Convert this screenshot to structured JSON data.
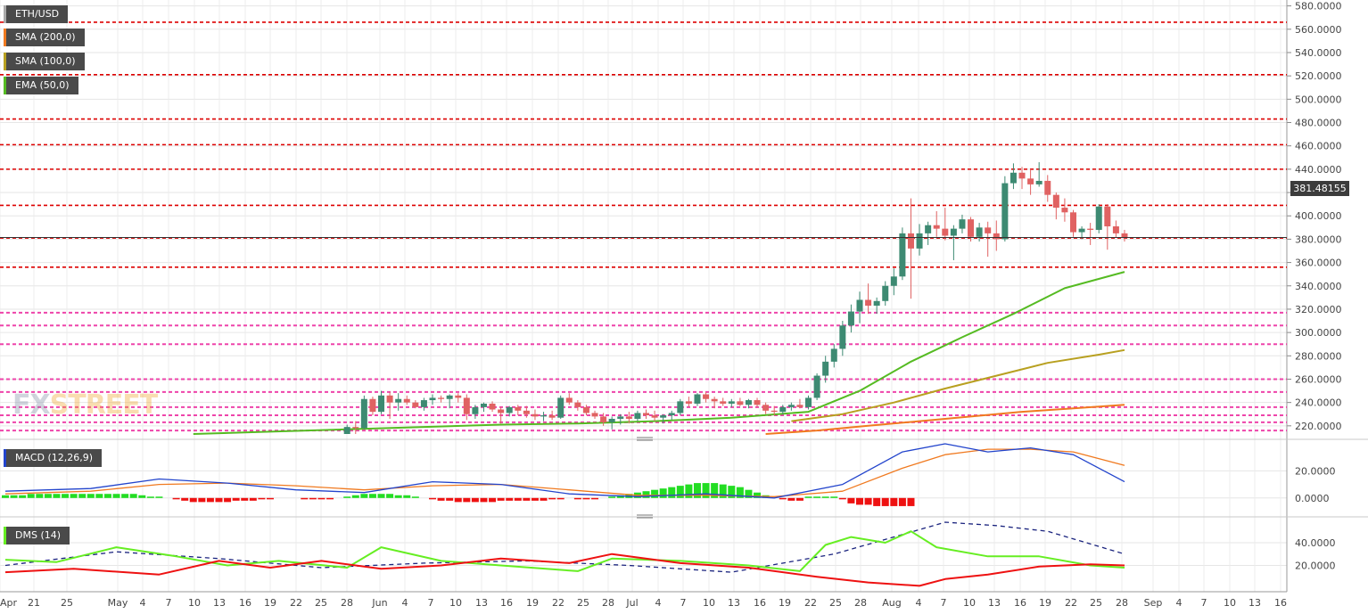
{
  "legend": {
    "symbol": "ETH/USD",
    "sma200": "SMA (200,0)",
    "sma100": "SMA (100,0)",
    "ema50": "EMA (50,0)",
    "macd": "MACD (12,26,9)",
    "dms": "DMS (14)"
  },
  "colors": {
    "up": "#3d8a72",
    "down": "#e06262",
    "sma200": "#f07a20",
    "sma100": "#b8a020",
    "ema50": "#55bb22",
    "macd_line": "#2244cc",
    "signal_line": "#f07a20",
    "hist_pos": "#22dd22",
    "hist_neg": "#ee1111",
    "dmi_plus": "#66ee22",
    "dmi_minus": "#ee1111",
    "adx": "#1a237e",
    "support_red": "#dd0000",
    "support_pink": "#ee44aa",
    "watermark_fx": "#7a8aa0",
    "watermark_street": "#f0a020"
  },
  "watermark": {
    "fx": "FX",
    "street": "STREET"
  },
  "last_price": "381.48155",
  "chart_data": [
    {
      "type": "candlestick",
      "ylim": [
        213,
        582
      ],
      "y_ticks": [
        "220.0000",
        "240.0000",
        "260.0000",
        "280.0000",
        "300.0000",
        "320.0000",
        "340.0000",
        "360.0000",
        "380.0000",
        "400.0000",
        "420.0000",
        "440.0000",
        "460.0000",
        "480.0000",
        "500.0000",
        "520.0000",
        "540.0000",
        "560.0000",
        "580.0000"
      ],
      "x_ticks": [
        "Apr",
        "21",
        "25",
        "May",
        "4",
        "7",
        "10",
        "13",
        "16",
        "19",
        "22",
        "25",
        "28",
        "Jun",
        "4",
        "7",
        "10",
        "13",
        "16",
        "19",
        "22",
        "25",
        "28",
        "Jul",
        "4",
        "7",
        "10",
        "13",
        "16",
        "19",
        "22",
        "25",
        "28",
        "Aug",
        "4",
        "7",
        "10",
        "13",
        "16",
        "19",
        "22",
        "25",
        "28",
        "Sep",
        "4",
        "7",
        "10",
        "13",
        "16"
      ],
      "start_date": "2020-04-18",
      "dates": [
        "2020-05-27",
        "2020-05-28",
        "2020-05-29",
        "2020-05-30",
        "2020-05-31",
        "2020-06-01",
        "2020-06-02",
        "2020-06-03",
        "2020-06-04",
        "2020-06-05",
        "2020-06-06",
        "2020-06-07",
        "2020-06-08",
        "2020-06-09",
        "2020-06-10",
        "2020-06-11",
        "2020-06-12",
        "2020-06-13",
        "2020-06-14",
        "2020-06-15",
        "2020-06-16",
        "2020-06-17",
        "2020-06-18",
        "2020-06-19",
        "2020-06-20",
        "2020-06-21",
        "2020-06-22",
        "2020-06-23",
        "2020-06-24",
        "2020-06-25",
        "2020-06-26",
        "2020-06-27",
        "2020-06-28",
        "2020-06-29",
        "2020-06-30",
        "2020-07-01",
        "2020-07-02",
        "2020-07-03",
        "2020-07-04",
        "2020-07-05",
        "2020-07-06",
        "2020-07-07",
        "2020-07-08",
        "2020-07-09",
        "2020-07-10",
        "2020-07-11",
        "2020-07-12",
        "2020-07-13",
        "2020-07-14",
        "2020-07-15",
        "2020-07-16",
        "2020-07-17",
        "2020-07-18",
        "2020-07-19",
        "2020-07-20",
        "2020-07-21",
        "2020-07-22",
        "2020-07-23",
        "2020-07-24",
        "2020-07-25",
        "2020-07-26",
        "2020-07-27",
        "2020-07-28",
        "2020-07-29",
        "2020-07-30",
        "2020-07-31",
        "2020-08-01",
        "2020-08-02",
        "2020-08-03",
        "2020-08-04",
        "2020-08-05",
        "2020-08-06",
        "2020-08-07",
        "2020-08-08",
        "2020-08-09",
        "2020-08-10",
        "2020-08-11",
        "2020-08-12",
        "2020-08-13",
        "2020-08-14",
        "2020-08-15",
        "2020-08-16",
        "2020-08-17",
        "2020-08-18",
        "2020-08-19",
        "2020-08-20",
        "2020-08-21",
        "2020-08-22",
        "2020-08-23",
        "2020-08-24",
        "2020-08-25",
        "2020-08-26",
        "2020-08-27"
      ],
      "ohlc": [
        [
          205,
          211,
          203,
          208
        ],
        [
          208,
          221,
          206,
          219
        ],
        [
          219,
          224,
          213,
          218
        ],
        [
          218,
          246,
          217,
          243
        ],
        [
          243,
          245,
          229,
          232
        ],
        [
          232,
          250,
          230,
          246
        ],
        [
          246,
          249,
          226,
          240
        ],
        [
          240,
          248,
          233,
          243
        ],
        [
          243,
          246,
          238,
          240
        ],
        [
          240,
          242,
          235,
          236
        ],
        [
          236,
          244,
          233,
          242
        ],
        [
          242,
          247,
          238,
          244
        ],
        [
          244,
          246,
          240,
          243
        ],
        [
          243,
          247,
          235,
          246
        ],
        [
          246,
          248,
          240,
          244
        ],
        [
          244,
          247,
          225,
          230
        ],
        [
          230,
          238,
          226,
          236
        ],
        [
          236,
          240,
          232,
          239
        ],
        [
          239,
          241,
          232,
          234
        ],
        [
          234,
          236,
          222,
          231
        ],
        [
          231,
          237,
          228,
          236
        ],
        [
          236,
          238,
          229,
          233
        ],
        [
          233,
          237,
          227,
          230
        ],
        [
          230,
          234,
          225,
          228
        ],
        [
          228,
          232,
          224,
          229
        ],
        [
          229,
          233,
          225,
          227
        ],
        [
          227,
          246,
          226,
          244
        ],
        [
          244,
          248,
          238,
          240
        ],
        [
          240,
          242,
          233,
          236
        ],
        [
          236,
          238,
          229,
          231
        ],
        [
          231,
          233,
          226,
          228
        ],
        [
          228,
          231,
          220,
          223
        ],
        [
          223,
          228,
          217,
          226
        ],
        [
          226,
          230,
          221,
          228
        ],
        [
          228,
          232,
          222,
          226
        ],
        [
          226,
          233,
          224,
          231
        ],
        [
          231,
          234,
          226,
          229
        ],
        [
          229,
          233,
          224,
          227
        ],
        [
          227,
          230,
          222,
          229
        ],
        [
          229,
          233,
          225,
          231
        ],
        [
          231,
          243,
          229,
          241
        ],
        [
          241,
          245,
          236,
          239
        ],
        [
          239,
          248,
          237,
          247
        ],
        [
          247,
          249,
          240,
          243
        ],
        [
          243,
          245,
          235,
          241
        ],
        [
          241,
          244,
          237,
          239
        ],
        [
          239,
          243,
          236,
          241
        ],
        [
          241,
          244,
          237,
          238
        ],
        [
          238,
          243,
          235,
          242
        ],
        [
          242,
          244,
          236,
          238
        ],
        [
          238,
          240,
          230,
          233
        ],
        [
          233,
          237,
          229,
          232
        ],
        [
          232,
          238,
          230,
          236
        ],
        [
          236,
          240,
          233,
          238
        ],
        [
          238,
          243,
          235,
          236
        ],
        [
          236,
          246,
          234,
          244
        ],
        [
          244,
          265,
          242,
          263
        ],
        [
          263,
          280,
          257,
          275
        ],
        [
          275,
          290,
          270,
          286
        ],
        [
          286,
          310,
          280,
          306
        ],
        [
          306,
          324,
          300,
          318
        ],
        [
          318,
          335,
          308,
          328
        ],
        [
          328,
          342,
          316,
          323
        ],
        [
          323,
          330,
          316,
          327
        ],
        [
          327,
          344,
          323,
          340
        ],
        [
          340,
          355,
          332,
          348
        ],
        [
          348,
          390,
          345,
          385
        ],
        [
          385,
          415,
          329,
          372
        ],
        [
          372,
          393,
          366,
          385
        ],
        [
          385,
          395,
          375,
          392
        ],
        [
          392,
          404,
          382,
          389
        ],
        [
          389,
          407,
          379,
          383
        ],
        [
          383,
          392,
          362,
          389
        ],
        [
          389,
          401,
          385,
          397
        ],
        [
          397,
          399,
          378,
          382
        ],
        [
          382,
          394,
          378,
          390
        ],
        [
          390,
          395,
          365,
          385
        ],
        [
          385,
          396,
          370,
          380
        ],
        [
          380,
          434,
          378,
          428
        ],
        [
          428,
          445,
          423,
          437
        ],
        [
          437,
          442,
          423,
          432
        ],
        [
          432,
          440,
          418,
          427
        ],
        [
          427,
          446,
          425,
          430
        ],
        [
          430,
          435,
          412,
          418
        ],
        [
          418,
          420,
          397,
          407
        ],
        [
          407,
          415,
          395,
          403
        ],
        [
          403,
          405,
          382,
          386
        ],
        [
          386,
          391,
          380,
          389
        ],
        [
          389,
          394,
          375,
          388
        ],
        [
          388,
          410,
          385,
          408
        ],
        [
          408,
          410,
          371,
          391
        ],
        [
          391,
          396,
          381,
          385
        ],
        [
          385,
          388,
          378,
          381
        ]
      ],
      "sma200": {
        "dates": [
          "2020-07-16",
          "2020-07-22",
          "2020-07-28",
          "2020-08-03",
          "2020-08-09",
          "2020-08-15",
          "2020-08-21",
          "2020-08-27"
        ],
        "values": [
          213,
          216,
          220,
          224,
          228,
          232,
          235,
          238
        ]
      },
      "sma100": {
        "dates": [
          "2020-07-19",
          "2020-07-25",
          "2020-07-31",
          "2020-08-06",
          "2020-08-12",
          "2020-08-18",
          "2020-08-24",
          "2020-08-27"
        ],
        "values": [
          224,
          230,
          240,
          252,
          263,
          274,
          281,
          285
        ]
      },
      "ema50": {
        "dates": [
          "2020-05-10",
          "2020-05-19",
          "2020-05-28",
          "2020-06-06",
          "2020-06-15",
          "2020-06-24",
          "2020-07-03",
          "2020-07-12",
          "2020-07-21",
          "2020-07-27",
          "2020-08-02",
          "2020-08-08",
          "2020-08-14",
          "2020-08-20",
          "2020-08-27"
        ],
        "values": [
          213,
          215,
          217,
          219,
          221,
          222,
          224,
          227,
          232,
          250,
          275,
          296,
          316,
          338,
          352
        ]
      },
      "support_lines_red": [
        566,
        521,
        483,
        461,
        440,
        409,
        381,
        356
      ],
      "support_lines_pink": [
        317,
        306,
        290,
        260,
        249,
        236,
        229,
        223,
        216
      ]
    },
    {
      "type": "line",
      "title": "MACD (12,26,9)",
      "ylim": [
        -10,
        40
      ],
      "y_ticks": [
        "0.0000",
        "20.0000"
      ],
      "macd": {
        "dates": [
          "2020-04-18",
          "2020-04-28",
          "2020-05-06",
          "2020-05-14",
          "2020-05-22",
          "2020-05-30",
          "2020-06-07",
          "2020-06-15",
          "2020-06-23",
          "2020-07-01",
          "2020-07-09",
          "2020-07-17",
          "2020-07-25",
          "2020-08-01",
          "2020-08-06",
          "2020-08-11",
          "2020-08-16",
          "2020-08-21",
          "2020-08-27"
        ],
        "values": [
          5,
          7,
          14,
          11,
          6,
          4,
          12,
          10,
          3,
          1,
          3,
          0,
          10,
          34,
          40,
          34,
          37,
          32,
          12
        ]
      },
      "signal": {
        "dates": [
          "2020-04-18",
          "2020-04-28",
          "2020-05-06",
          "2020-05-14",
          "2020-05-22",
          "2020-05-30",
          "2020-06-07",
          "2020-06-15",
          "2020-06-23",
          "2020-07-01",
          "2020-07-09",
          "2020-07-17",
          "2020-07-25",
          "2020-08-01",
          "2020-08-06",
          "2020-08-11",
          "2020-08-16",
          "2020-08-21",
          "2020-08-27"
        ],
        "values": [
          3,
          5,
          10,
          11,
          9,
          6,
          9,
          10,
          6,
          2,
          2,
          1,
          5,
          22,
          32,
          36,
          36,
          34,
          24
        ]
      },
      "histogram": {
        "start_date": "2020-04-18",
        "values": [
          2,
          2,
          2,
          3,
          3,
          3,
          3,
          3,
          3,
          3,
          3,
          3,
          3,
          3,
          3,
          3,
          2,
          1,
          1,
          0,
          -1,
          -2,
          -3,
          -3,
          -3,
          -3,
          -3,
          -2,
          -2,
          -2,
          -1,
          -1,
          0,
          0,
          0,
          -1,
          -1,
          -1,
          -1,
          0,
          1,
          2,
          3,
          3,
          3,
          3,
          2,
          2,
          1,
          0,
          -1,
          -2,
          -2,
          -3,
          -3,
          -3,
          -3,
          -3,
          -2,
          -2,
          -2,
          -2,
          -2,
          -2,
          -1,
          -1,
          0,
          -1,
          -1,
          -1,
          0,
          1,
          2,
          3,
          4,
          5,
          6,
          7,
          8,
          9,
          10,
          11,
          11,
          11,
          10,
          9,
          8,
          6,
          4,
          2,
          0,
          -1,
          -2,
          -2,
          1,
          1,
          1,
          1,
          -1,
          -4,
          -5,
          -5,
          -6,
          -6,
          -6,
          -6,
          -6
        ]
      }
    },
    {
      "type": "line",
      "title": "DMS (14)",
      "ylim": [
        0,
        58
      ],
      "y_ticks": [
        "20.0000",
        "40.0000"
      ],
      "dmi_plus": {
        "dates": [
          "2020-04-18",
          "2020-04-24",
          "2020-05-01",
          "2020-05-08",
          "2020-05-14",
          "2020-05-20",
          "2020-05-28",
          "2020-06-01",
          "2020-06-08",
          "2020-06-15",
          "2020-06-24",
          "2020-06-28",
          "2020-07-06",
          "2020-07-14",
          "2020-07-20",
          "2020-07-23",
          "2020-07-26",
          "2020-07-30",
          "2020-08-02",
          "2020-08-05",
          "2020-08-11",
          "2020-08-17",
          "2020-08-23",
          "2020-08-27"
        ],
        "values": [
          25,
          23,
          36,
          28,
          20,
          24,
          18,
          36,
          24,
          20,
          15,
          26,
          24,
          20,
          15,
          38,
          45,
          40,
          50,
          36,
          28,
          28,
          20,
          18
        ]
      },
      "dmi_minus": {
        "dates": [
          "2020-04-18",
          "2020-04-26",
          "2020-05-06",
          "2020-05-13",
          "2020-05-19",
          "2020-05-25",
          "2020-06-01",
          "2020-06-08",
          "2020-06-15",
          "2020-06-23",
          "2020-06-28",
          "2020-07-06",
          "2020-07-14",
          "2020-07-22",
          "2020-07-28",
          "2020-08-03",
          "2020-08-06",
          "2020-08-11",
          "2020-08-17",
          "2020-08-23",
          "2020-08-27"
        ],
        "values": [
          14,
          17,
          12,
          24,
          18,
          24,
          17,
          20,
          26,
          22,
          30,
          22,
          18,
          10,
          5,
          2,
          8,
          12,
          19,
          21,
          20
        ]
      },
      "adx": {
        "dates": [
          "2020-04-18",
          "2020-05-01",
          "2020-05-13",
          "2020-05-25",
          "2020-06-06",
          "2020-06-18",
          "2020-06-30",
          "2020-07-12",
          "2020-07-24",
          "2020-07-31",
          "2020-08-06",
          "2020-08-12",
          "2020-08-18",
          "2020-08-27"
        ],
        "values": [
          20,
          32,
          26,
          18,
          22,
          24,
          20,
          14,
          30,
          45,
          58,
          55,
          50,
          30
        ]
      }
    }
  ]
}
